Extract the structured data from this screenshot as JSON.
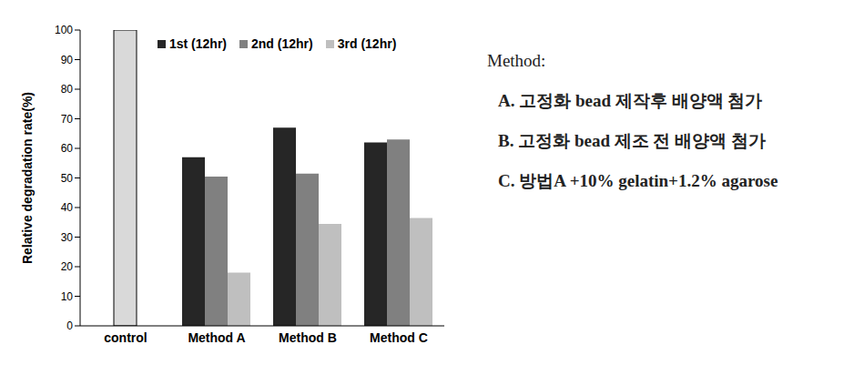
{
  "chart_data": {
    "type": "bar",
    "y_label": "Relative degradation rate(%)",
    "categories": [
      "control",
      "Method A",
      "Method B",
      "Method C"
    ],
    "series": [
      {
        "name": "1st (12hr)",
        "color": "#262626",
        "values": [
          null,
          57,
          67,
          62
        ]
      },
      {
        "name": "2nd (12hr)",
        "color": "#808080",
        "colors": [
          "#d9d9d9",
          "#808080",
          "#808080",
          "#808080"
        ],
        "values": [
          100,
          50.5,
          51.5,
          63
        ]
      },
      {
        "name": "3rd (12hr)",
        "color": "#bfbfbf",
        "values": [
          null,
          18,
          34.5,
          36.5
        ]
      }
    ],
    "ylim": [
      0,
      100
    ],
    "yticks": [
      0,
      10,
      20,
      30,
      40,
      50,
      60,
      70,
      80,
      90,
      100
    ],
    "grid": false,
    "legend": "top",
    "annotations": [
      "Method:",
      "A. 고정화 bead 제작후 배양액 첨가",
      "B. 고정화 bead 제조 전 배양액 첨가",
      "C. 방법A +10% gelatin+1.2% agarose"
    ]
  }
}
